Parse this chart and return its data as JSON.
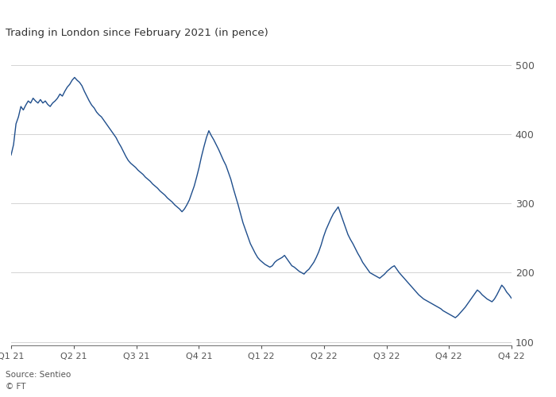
{
  "title": "Trading in London since February 2021 (in pence)",
  "source": "Source: Sentieo",
  "ft_label": "© FT",
  "line_color": "#1f4e8c",
  "background_color": "#ffffff",
  "grid_color": "#cccccc",
  "text_color": "#555555",
  "title_color": "#333333",
  "ylim": [
    95,
    525
  ],
  "yticks": [
    100,
    200,
    300,
    400,
    500
  ],
  "xtick_labels": [
    "Q1 21",
    "Q2 21",
    "Q3 21",
    "Q4 21",
    "Q1 22",
    "Q2 22",
    "Q3 22",
    "Q4 22",
    "Q4 22"
  ],
  "prices": [
    370,
    385,
    415,
    425,
    440,
    435,
    442,
    448,
    445,
    452,
    448,
    445,
    450,
    445,
    448,
    443,
    440,
    445,
    448,
    452,
    458,
    455,
    462,
    468,
    472,
    478,
    482,
    478,
    475,
    470,
    462,
    455,
    448,
    442,
    438,
    432,
    428,
    425,
    420,
    415,
    410,
    405,
    400,
    395,
    388,
    382,
    375,
    368,
    362,
    358,
    355,
    352,
    348,
    345,
    342,
    338,
    335,
    332,
    328,
    325,
    322,
    318,
    315,
    312,
    308,
    305,
    302,
    298,
    295,
    292,
    288,
    292,
    298,
    305,
    315,
    325,
    338,
    352,
    368,
    382,
    395,
    405,
    398,
    392,
    385,
    378,
    370,
    362,
    355,
    345,
    335,
    322,
    310,
    298,
    285,
    272,
    262,
    252,
    242,
    235,
    228,
    222,
    218,
    215,
    212,
    210,
    208,
    210,
    215,
    218,
    220,
    222,
    225,
    220,
    215,
    210,
    208,
    205,
    202,
    200,
    198,
    202,
    205,
    210,
    215,
    222,
    230,
    240,
    252,
    262,
    270,
    278,
    285,
    290,
    295,
    285,
    275,
    265,
    255,
    248,
    242,
    235,
    228,
    222,
    215,
    210,
    205,
    200,
    198,
    196,
    194,
    192,
    195,
    198,
    202,
    205,
    208,
    210,
    205,
    200,
    196,
    192,
    188,
    184,
    180,
    176,
    172,
    168,
    165,
    162,
    160,
    158,
    156,
    154,
    152,
    150,
    148,
    145,
    143,
    141,
    139,
    137,
    135,
    138,
    142,
    146,
    150,
    155,
    160,
    165,
    170,
    175,
    172,
    168,
    165,
    162,
    160,
    158,
    162,
    168,
    175,
    182,
    178,
    172,
    168,
    163
  ]
}
